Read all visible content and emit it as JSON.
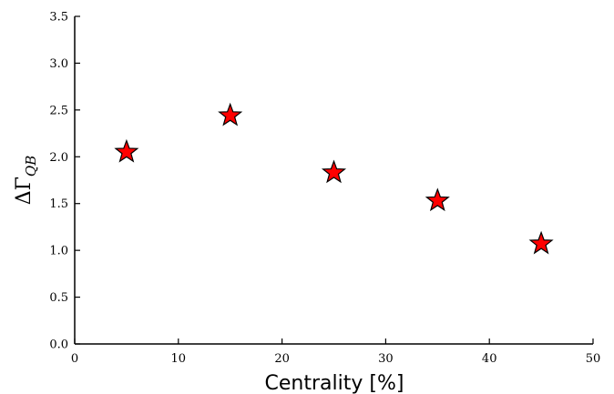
{
  "chart_data": {
    "type": "scatter",
    "title": "",
    "xlabel": "Centrality [%]",
    "ylabel": {
      "base": "ΔΓ",
      "subscript": "QB"
    },
    "xlim": [
      0,
      50
    ],
    "ylim": [
      0,
      3.5
    ],
    "xticks": [
      "0",
      "10",
      "20",
      "30",
      "40",
      "50"
    ],
    "yticks": [
      "0.0",
      "0.5",
      "1.0",
      "1.5",
      "2.0",
      "2.5",
      "3.0",
      "3.5"
    ],
    "grid": false,
    "legend": "none",
    "marker": "star",
    "marker_color": "#ff0000",
    "series": [
      {
        "points": [
          {
            "x": 5,
            "y": 2.05
          },
          {
            "x": 15,
            "y": 2.44
          },
          {
            "x": 25,
            "y": 1.83
          },
          {
            "x": 35,
            "y": 1.53
          },
          {
            "x": 45,
            "y": 1.07
          }
        ]
      }
    ]
  }
}
